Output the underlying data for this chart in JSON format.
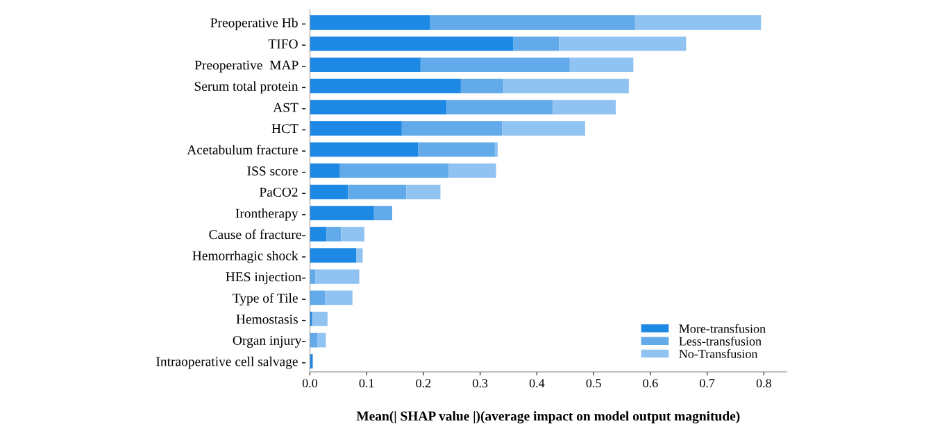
{
  "chart_data": {
    "type": "bar",
    "orientation": "horizontal",
    "stacked": true,
    "xlabel": "Mean(| SHAP value |)(average impact on model output magnitude)",
    "categories": [
      "Preoperative Hb -",
      "TIFO -",
      "Preoperative  MAP -",
      "Serum total protein -",
      "AST -",
      "HCT -",
      "Acetabulum fracture -",
      "ISS score -",
      "PaCO2 -",
      "Irontherapy -",
      "Cause of fracture-",
      "Hemorrhagic shock -",
      "HES injection-",
      "Type of Tile -",
      "Hemostasis -",
      "Organ injury-",
      "Intraoperative cell salvage -"
    ],
    "series": [
      {
        "name": "More-transfusion",
        "color": "#1e88e5",
        "values": [
          0.212,
          0.358,
          0.195,
          0.266,
          0.241,
          0.162,
          0.191,
          0.053,
          0.067,
          0.113,
          0.029,
          0.082,
          0,
          0,
          0.004,
          0,
          0.005
        ]
      },
      {
        "name": "Less-transfusion",
        "color": "#62aae9",
        "values": [
          0.361,
          0.081,
          0.263,
          0.075,
          0.187,
          0.177,
          0.135,
          0.191,
          0.103,
          0.032,
          0.026,
          0,
          0.01,
          0.027,
          0,
          0.013,
          0
        ]
      },
      {
        "name": "No-Transfusion",
        "color": "#90c3f2",
        "values": [
          0.222,
          0.224,
          0.112,
          0.221,
          0.111,
          0.146,
          0.005,
          0.084,
          0.06,
          0,
          0.041,
          0.011,
          0.077,
          0.048,
          0.027,
          0.015,
          0
        ]
      }
    ],
    "xlim": [
      0,
      0.84
    ],
    "xticks": [
      {
        "value": 0,
        "label": "0.0"
      },
      0.1,
      0.2,
      0.3,
      0.4,
      0.5,
      0.6,
      0.7,
      0.8
    ],
    "grid": false,
    "legend": "bottom right"
  }
}
